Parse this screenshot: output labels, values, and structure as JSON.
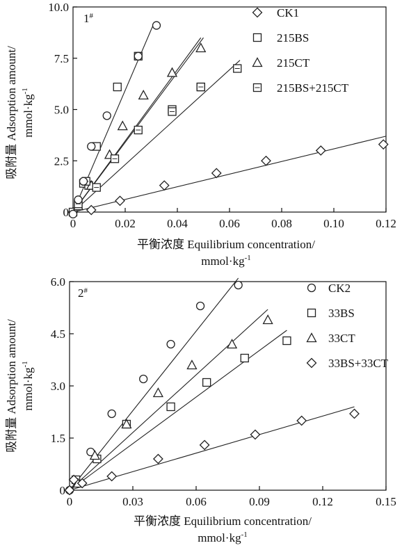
{
  "figure": {
    "panels": [
      {
        "tag": "1",
        "tag_sup": "#",
        "xlabel_line1": "平衡浓度 Equilibrium concentration/",
        "xlabel_line2_main": "mmol·kg",
        "xlabel_line2_sup": "-1",
        "ylabel_line1": "吸附量 Adsorption amount/",
        "ylabel_line2_main": "mmol·kg",
        "ylabel_line2_sup": "-1",
        "xticks": [
          "0",
          "0.02",
          "0.04",
          "0.06",
          "0.08",
          "0.10",
          "0.12"
        ],
        "yticks": [
          "0",
          "2.5",
          "5.0",
          "7.5",
          "10.0"
        ],
        "legend": [
          "CK1",
          "215BS",
          "215CT",
          "215BS+215CT"
        ]
      },
      {
        "tag": "2",
        "tag_sup": "#",
        "xlabel_line1": "平衡浓度 Equilibrium concentration/",
        "xlabel_line2_main": "mmol·kg",
        "xlabel_line2_sup": "-1",
        "ylabel_line1": "吸附量 Adsorption amount/",
        "ylabel_line2_main": "mmol·kg",
        "ylabel_line2_sup": "-1",
        "xticks": [
          "0",
          "0.03",
          "0.06",
          "0.09",
          "0.12",
          "0.15"
        ],
        "yticks": [
          "0",
          "1.5",
          "3.0",
          "4.5",
          "6.0"
        ],
        "legend": [
          "CK2",
          "33BS",
          "33CT",
          "33BS+33CT"
        ]
      }
    ]
  },
  "chart_data": [
    {
      "type": "scatter",
      "xlim": [
        0,
        0.12
      ],
      "ylim": [
        0,
        10.0
      ],
      "legend_position": "top-right",
      "series": [
        {
          "name": "CK1",
          "marker": "diamond",
          "x": [
            0.0,
            0.007,
            0.018,
            0.035,
            0.055,
            0.074,
            0.095,
            0.119
          ],
          "y": [
            0.0,
            0.1,
            0.55,
            1.3,
            1.9,
            2.5,
            3.0,
            3.3
          ],
          "fit": [
            [
              0.0,
              0.0
            ],
            [
              0.12,
              3.7
            ]
          ]
        },
        {
          "name": "215BS",
          "marker": "square",
          "x": [
            0.0,
            0.002,
            0.004,
            0.006,
            0.009,
            0.017,
            0.025,
            0.038,
            0.049
          ],
          "y": [
            0.0,
            0.3,
            1.4,
            1.3,
            3.2,
            6.1,
            7.6,
            5.0,
            6.1
          ],
          "fit": [
            [
              0.0,
              0.0
            ],
            [
              0.049,
              8.5
            ]
          ]
        },
        {
          "name": "215CT",
          "marker": "triangle",
          "x": [
            0.002,
            0.007,
            0.014,
            0.019,
            0.027,
            0.038,
            0.049
          ],
          "y": [
            0.3,
            1.3,
            2.8,
            4.2,
            5.7,
            6.8,
            8.0
          ],
          "fit": [
            [
              0.0,
              0.0
            ],
            [
              0.05,
              8.5
            ]
          ]
        },
        {
          "name": "215BS+215CT",
          "marker": "hollow-square",
          "x": [
            0.002,
            0.005,
            0.009,
            0.016,
            0.025,
            0.038,
            0.049,
            0.063
          ],
          "y": [
            0.4,
            1.5,
            1.2,
            2.6,
            4.0,
            4.9,
            6.1,
            7.0
          ],
          "fit": [
            [
              0.0,
              0.0
            ],
            [
              0.064,
              7.4
            ]
          ]
        },
        {
          "name": "",
          "marker": "circle",
          "x": [
            0.0,
            0.002,
            0.004,
            0.007,
            0.013,
            0.025,
            0.032
          ],
          "y": [
            -0.1,
            0.6,
            1.5,
            3.2,
            4.7,
            7.6,
            9.1
          ],
          "fit": [
            [
              0.0,
              0.0
            ],
            [
              0.031,
              9.2
            ]
          ]
        }
      ]
    },
    {
      "type": "scatter",
      "xlim": [
        0,
        0.15
      ],
      "ylim": [
        0,
        6.0
      ],
      "legend_position": "top-right",
      "series": [
        {
          "name": "CK2",
          "marker": "circle",
          "x": [
            0.0,
            0.003,
            0.01,
            0.02,
            0.035,
            0.048,
            0.062,
            0.08
          ],
          "y": [
            0.0,
            0.3,
            1.1,
            2.2,
            3.2,
            4.2,
            5.3,
            5.9
          ],
          "fit": [
            [
              0.0,
              0.0
            ],
            [
              0.08,
              6.1
            ]
          ]
        },
        {
          "name": "33BS",
          "marker": "square",
          "x": [
            0.003,
            0.013,
            0.027,
            0.048,
            0.065,
            0.083,
            0.103
          ],
          "y": [
            0.3,
            0.9,
            1.9,
            2.4,
            3.1,
            3.8,
            4.3
          ],
          "fit": [
            [
              0.0,
              0.0
            ],
            [
              0.103,
              4.6
            ]
          ]
        },
        {
          "name": "33CT",
          "marker": "triangle",
          "x": [
            0.004,
            0.012,
            0.027,
            0.042,
            0.058,
            0.077,
            0.094
          ],
          "y": [
            0.2,
            1.0,
            1.9,
            2.8,
            3.6,
            4.2,
            4.9
          ],
          "fit": [
            [
              0.0,
              0.0
            ],
            [
              0.094,
              5.2
            ]
          ]
        },
        {
          "name": "33BS+33CT",
          "marker": "diamond",
          "x": [
            0.0,
            0.002,
            0.006,
            0.02,
            0.042,
            0.064,
            0.088,
            0.11,
            0.135
          ],
          "y": [
            0.0,
            0.3,
            0.2,
            0.4,
            0.9,
            1.3,
            1.6,
            2.0,
            2.2
          ],
          "fit": [
            [
              0.0,
              0.0
            ],
            [
              0.135,
              2.4
            ]
          ]
        }
      ]
    }
  ]
}
